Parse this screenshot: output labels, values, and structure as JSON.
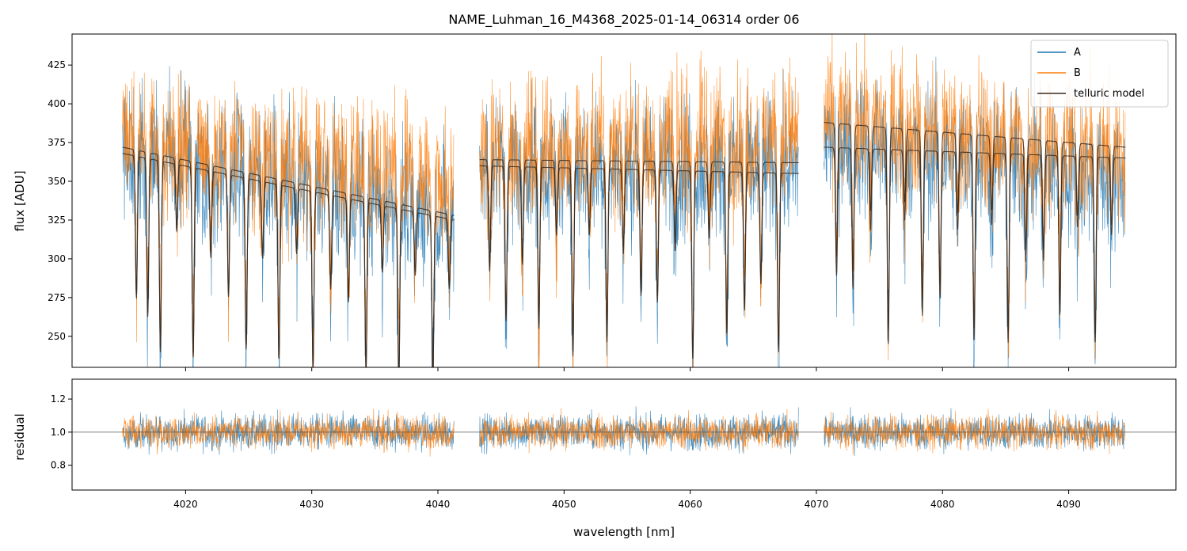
{
  "chart_data": [
    {
      "type": "line",
      "panel": "main",
      "title": "NAME_Luhman_16_M4368_2025-01-14_06314  order 06",
      "xlabel": "",
      "ylabel": "flux [ADU]",
      "xlim": [
        4011,
        4098.5
      ],
      "ylim": [
        230,
        445
      ],
      "x_ticks": [
        4020,
        4030,
        4040,
        4050,
        4060,
        4070,
        4080,
        4090
      ],
      "y_ticks": [
        250,
        275,
        300,
        325,
        350,
        375,
        400,
        425
      ],
      "y_tick_labels": [
        "250",
        "275",
        "300",
        "325",
        "350",
        "375",
        "400",
        "425"
      ],
      "segments": [
        [
          4015.0,
          4041.3
        ],
        [
          4043.3,
          4068.6
        ],
        [
          4070.6,
          4094.5
        ]
      ],
      "telluric_lines": [
        4016.1,
        4017.0,
        4018.0,
        4019.3,
        4020.6,
        4022.0,
        4023.4,
        4024.8,
        4026.1,
        4027.4,
        4028.8,
        4030.1,
        4031.5,
        4032.9,
        4034.3,
        4035.6,
        4036.9,
        4038.2,
        4039.6,
        4040.9,
        4044.1,
        4045.4,
        4046.7,
        4048.0,
        4049.4,
        4050.7,
        4052.0,
        4053.4,
        4054.7,
        4056.1,
        4057.4,
        4058.8,
        4060.2,
        4061.5,
        4062.9,
        4064.3,
        4065.6,
        4067.0,
        4071.6,
        4072.9,
        4074.3,
        4075.7,
        4077.0,
        4078.4,
        4079.8,
        4081.2,
        4082.5,
        4083.9,
        4085.2,
        4086.6,
        4088.0,
        4089.3,
        4090.7,
        4092.1,
        4093.4
      ],
      "series": [
        {
          "name": "A",
          "color": "#1f77b4",
          "baseline": [
            [
              4015.0,
              372
            ],
            [
              4041.3,
              328
            ],
            [
              4043.3,
              362
            ],
            [
              4068.6,
              358
            ],
            [
              4070.6,
              378
            ],
            [
              4094.5,
              352
            ]
          ],
          "noise": 42
        },
        {
          "name": "B",
          "color": "#ff7f0e",
          "baseline": [
            [
              4015.0,
              380
            ],
            [
              4041.3,
              348
            ],
            [
              4043.3,
              368
            ],
            [
              4068.6,
              380
            ],
            [
              4070.6,
              390
            ],
            [
              4094.5,
              370
            ]
          ],
          "noise": 42
        },
        {
          "name": "telluric model",
          "color": "#3a2a1f",
          "models": [
            {
              "baseline": [
                [
                  4015.0,
                  372
                ],
                [
                  4041.3,
                  328
                ],
                [
                  4043.3,
                  364
                ],
                [
                  4068.6,
                  362
                ],
                [
                  4070.6,
                  388
                ],
                [
                  4094.5,
                  372
                ]
              ]
            },
            {
              "baseline": [
                [
                  4015.0,
                  368
                ],
                [
                  4041.3,
                  325
                ],
                [
                  4043.3,
                  360
                ],
                [
                  4068.6,
                  355
                ],
                [
                  4070.6,
                  372
                ],
                [
                  4094.5,
                  365
                ]
              ]
            }
          ]
        }
      ],
      "legend": {
        "position": "upper right",
        "entries": [
          "A",
          "B",
          "telluric model"
        ]
      }
    },
    {
      "type": "line",
      "panel": "residual",
      "xlabel": "wavelength [nm]",
      "ylabel": "residual",
      "xlim": [
        4011,
        4098.5
      ],
      "ylim": [
        0.65,
        1.32
      ],
      "x_ticks": [
        4020,
        4030,
        4040,
        4050,
        4060,
        4070,
        4080,
        4090
      ],
      "x_tick_labels": [
        "4020",
        "4030",
        "4040",
        "4050",
        "4060",
        "4070",
        "4080",
        "4090"
      ],
      "y_ticks": [
        0.8,
        1.0,
        1.2
      ],
      "y_tick_labels": [
        "0.8",
        "1.0",
        "1.2"
      ],
      "reference_line": 1.0,
      "series": [
        {
          "name": "A",
          "color": "#1f77b4",
          "noise": 0.12
        },
        {
          "name": "B",
          "color": "#ff7f0e",
          "noise": 0.11
        }
      ]
    }
  ]
}
